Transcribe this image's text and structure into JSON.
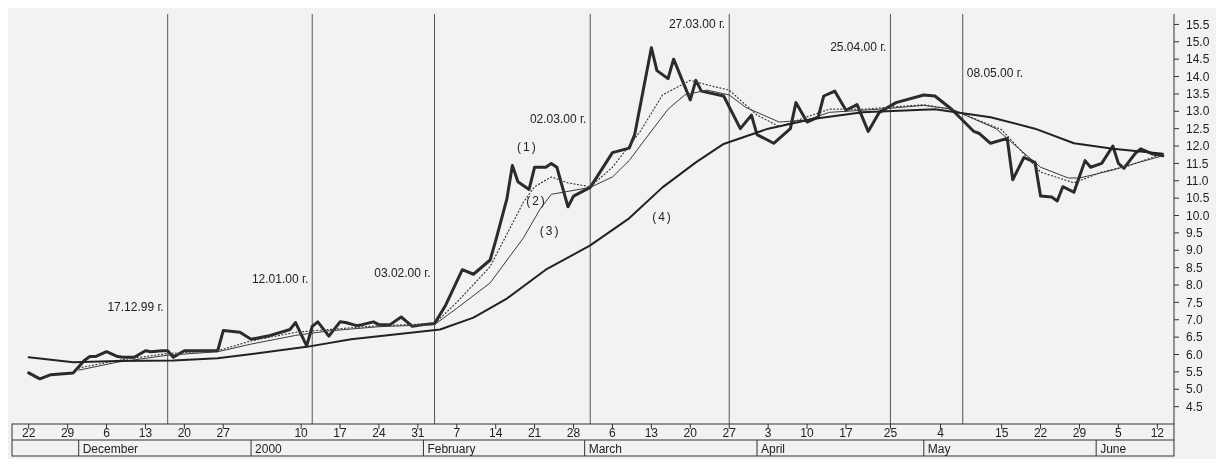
{
  "chart_data": {
    "type": "line",
    "xlim": [
      "1999-11-19",
      "2000-06-15"
    ],
    "xticks": [
      {
        "value": "1999-11-22",
        "label": "22"
      },
      {
        "value": "1999-11-29",
        "label": "29"
      },
      {
        "value": "1999-12-06",
        "label": "6"
      },
      {
        "value": "1999-12-13",
        "label": "13"
      },
      {
        "value": "1999-12-20",
        "label": "20"
      },
      {
        "value": "1999-12-27",
        "label": "27"
      },
      {
        "value": "2000-01-10",
        "label": "10"
      },
      {
        "value": "2000-01-17",
        "label": "17"
      },
      {
        "value": "2000-01-24",
        "label": "24"
      },
      {
        "value": "2000-01-31",
        "label": "31"
      },
      {
        "value": "2000-02-07",
        "label": "7"
      },
      {
        "value": "2000-02-14",
        "label": "14"
      },
      {
        "value": "2000-02-21",
        "label": "21"
      },
      {
        "value": "2000-02-28",
        "label": "28"
      },
      {
        "value": "2000-03-06",
        "label": "6"
      },
      {
        "value": "2000-03-13",
        "label": "13"
      },
      {
        "value": "2000-03-20",
        "label": "20"
      },
      {
        "value": "2000-03-27",
        "label": "27"
      },
      {
        "value": "2000-04-03",
        "label": "3"
      },
      {
        "value": "2000-04-10",
        "label": "10"
      },
      {
        "value": "2000-04-17",
        "label": "17"
      },
      {
        "value": "2000-04-25",
        "label": "25"
      },
      {
        "value": "2000-05-04",
        "label": "4"
      },
      {
        "value": "2000-05-15",
        "label": "15"
      },
      {
        "value": "2000-05-22",
        "label": "22"
      },
      {
        "value": "2000-05-29",
        "label": "29"
      },
      {
        "value": "2000-06-05",
        "label": "5"
      },
      {
        "value": "2000-06-12",
        "label": "12"
      }
    ],
    "ylim": [
      4.0,
      15.8
    ],
    "yticks": [
      4.5,
      {
        "value": 5,
        "label": "5.0"
      },
      5.5,
      {
        "value": 6,
        "label": "6.0"
      },
      6.5,
      {
        "value": 7,
        "label": "7.0"
      },
      7.5,
      {
        "value": 8,
        "label": "8.0"
      },
      8.5,
      {
        "value": 9,
        "label": "9.0"
      },
      9.5,
      {
        "value": 10,
        "label": "10.0"
      },
      10.5,
      {
        "value": 11,
        "label": "11.0"
      },
      11.5,
      {
        "value": 12,
        "label": "12.0"
      },
      12.5,
      {
        "value": 13,
        "label": "13.0"
      },
      13.5,
      {
        "value": 14,
        "label": "14.0"
      },
      14.5,
      {
        "value": 15,
        "label": "15.0"
      },
      15.5
    ],
    "grid": false,
    "legend": false,
    "series": [
      {
        "color": "#2b2b2b",
        "line_style": "solid",
        "x": [
          "1999-11-22",
          "1999-11-24",
          "1999-11-26",
          "1999-11-30",
          "1999-12-02",
          "1999-12-03",
          "1999-12-04",
          "1999-12-06",
          "1999-12-08",
          "1999-12-09",
          "1999-12-11",
          "1999-12-13",
          "1999-12-14",
          "1999-12-16",
          "1999-12-17",
          "1999-12-18",
          "1999-12-20",
          "1999-12-23",
          "1999-12-26",
          "1999-12-27",
          "1999-12-30",
          "2000-01-01",
          "2000-01-04",
          "2000-01-07",
          "2000-01-08",
          "2000-01-09",
          "2000-01-11",
          "2000-01-12",
          "2000-01-13",
          "2000-01-15",
          "2000-01-17",
          "2000-01-18",
          "2000-01-20",
          "2000-01-21",
          "2000-01-23",
          "2000-01-24",
          "2000-01-26",
          "2000-01-28",
          "2000-01-30",
          "2000-02-01",
          "2000-02-03",
          "2000-02-05",
          "2000-02-08",
          "2000-02-10",
          "2000-02-13",
          "2000-02-14",
          "2000-02-16",
          "2000-02-17",
          "2000-02-18",
          "2000-02-20",
          "2000-02-21",
          "2000-02-23",
          "2000-02-24",
          "2000-02-25",
          "2000-02-27",
          "2000-02-28",
          "2000-03-02",
          "2000-03-06",
          "2000-03-09",
          "2000-03-10",
          "2000-03-13",
          "2000-03-14",
          "2000-03-16",
          "2000-03-17",
          "2000-03-20",
          "2000-03-21",
          "2000-03-22",
          "2000-03-26",
          "2000-03-29",
          "2000-03-31",
          "2000-04-01",
          "2000-04-04",
          "2000-04-07",
          "2000-04-08",
          "2000-04-10",
          "2000-04-12",
          "2000-04-13",
          "2000-04-15",
          "2000-04-17",
          "2000-04-19",
          "2000-04-21",
          "2000-04-23",
          "2000-04-26",
          "2000-05-01",
          "2000-05-03",
          "2000-05-06",
          "2000-05-10",
          "2000-05-11",
          "2000-05-13",
          "2000-05-16",
          "2000-05-17",
          "2000-05-19",
          "2000-05-21",
          "2000-05-22",
          "2000-05-24",
          "2000-05-25",
          "2000-05-26",
          "2000-05-28",
          "2000-05-30",
          "2000-05-31",
          "2000-06-02",
          "2000-06-04",
          "2000-06-05",
          "2000-06-06",
          "2000-06-08",
          "2000-06-09",
          "2000-06-11",
          "2000-06-13"
        ],
        "name": "(1)",
        "values": [
          5.47,
          5.3,
          5.42,
          5.47,
          5.83,
          5.94,
          5.94,
          6.08,
          5.94,
          5.92,
          5.92,
          6.11,
          6.08,
          6.11,
          6.11,
          5.92,
          6.11,
          6.11,
          6.11,
          6.69,
          6.64,
          6.44,
          6.53,
          6.67,
          6.72,
          6.92,
          6.25,
          6.81,
          6.94,
          6.53,
          6.94,
          6.92,
          6.83,
          6.86,
          6.94,
          6.86,
          6.86,
          7.08,
          6.81,
          6.86,
          6.89,
          7.42,
          8.44,
          8.31,
          8.72,
          9.28,
          10.47,
          11.44,
          10.97,
          10.75,
          11.39,
          11.39,
          11.5,
          11.39,
          10.25,
          10.56,
          10.81,
          11.81,
          11.94,
          12.33,
          14.83,
          14.17,
          13.94,
          14.5,
          13.33,
          13.89,
          13.58,
          13.44,
          12.5,
          12.89,
          12.33,
          12.08,
          12.5,
          13.25,
          12.69,
          12.83,
          13.44,
          13.58,
          13.03,
          13.19,
          12.42,
          12.97,
          13.25,
          13.47,
          13.44,
          13.06,
          12.42,
          12.36,
          12.08,
          12.22,
          11.03,
          11.67,
          11.53,
          10.56,
          10.53,
          10.42,
          10.83,
          10.67,
          11.58,
          11.39,
          11.5,
          12.0,
          11.5,
          11.36,
          11.78,
          11.92,
          11.78,
          11.72
        ]
      },
      {
        "color": "#3a3a3a",
        "line_style": "dotted",
        "x": [
          "1999-12-01",
          "1999-12-08",
          "1999-12-17",
          "1999-12-26",
          "2000-01-01",
          "2000-01-09",
          "2000-01-15",
          "2000-01-24",
          "2000-02-03",
          "2000-02-07",
          "2000-02-13",
          "2000-02-19",
          "2000-02-21",
          "2000-02-24",
          "2000-02-27",
          "2000-03-02",
          "2000-03-06",
          "2000-03-11",
          "2000-03-15",
          "2000-03-20",
          "2000-03-24",
          "2000-03-27",
          "2000-04-01",
          "2000-04-05",
          "2000-04-14",
          "2000-04-20",
          "2000-05-01",
          "2000-05-06",
          "2000-05-15",
          "2000-05-22",
          "2000-05-28",
          "2000-06-02",
          "2000-06-07",
          "2000-06-13"
        ],
        "name": "(2)",
        "values": [
          5.61,
          5.83,
          6.03,
          6.11,
          6.39,
          6.64,
          6.72,
          6.83,
          6.89,
          7.5,
          8.53,
          10.39,
          10.83,
          11.11,
          10.94,
          10.83,
          11.39,
          12.42,
          13.47,
          13.89,
          13.72,
          13.61,
          12.89,
          12.56,
          13.06,
          13.06,
          13.19,
          13.06,
          12.47,
          11.25,
          10.94,
          11.25,
          11.44,
          11.78
        ]
      },
      {
        "color": "#3a3a3a",
        "line_style": "solid",
        "x": [
          "1999-12-01",
          "1999-12-08",
          "1999-12-17",
          "1999-12-26",
          "2000-01-01",
          "2000-01-09",
          "2000-01-15",
          "2000-01-24",
          "2000-02-03",
          "2000-02-07",
          "2000-02-13",
          "2000-02-19",
          "2000-02-22",
          "2000-02-24",
          "2000-03-02",
          "2000-03-06",
          "2000-03-09",
          "2000-03-12",
          "2000-03-16",
          "2000-03-19",
          "2000-03-23",
          "2000-03-27",
          "2000-03-30",
          "2000-04-05",
          "2000-04-10",
          "2000-04-14",
          "2000-04-20",
          "2000-04-23",
          "2000-05-01",
          "2000-05-06",
          "2000-05-14",
          "2000-05-18",
          "2000-05-22",
          "2000-05-27",
          "2000-05-29",
          "2000-06-04",
          "2000-06-08",
          "2000-06-13"
        ],
        "name": "(3)",
        "values": [
          5.55,
          5.78,
          5.98,
          6.08,
          6.3,
          6.55,
          6.68,
          6.8,
          6.86,
          7.33,
          8.06,
          9.36,
          10.19,
          10.61,
          10.81,
          11.11,
          11.58,
          12.22,
          13.06,
          13.47,
          13.61,
          13.47,
          13.11,
          12.69,
          12.75,
          12.97,
          13.03,
          13.06,
          13.17,
          13.06,
          12.5,
          11.94,
          11.39,
          11.08,
          11.08,
          11.31,
          11.5,
          11.72
        ]
      },
      {
        "color": "#222222",
        "line_style": "solid",
        "x": [
          "1999-11-22",
          "1999-11-30",
          "1999-12-08",
          "1999-12-18",
          "1999-12-26",
          "2000-01-11",
          "2000-01-19",
          "2000-02-04",
          "2000-02-10",
          "2000-02-16",
          "2000-02-23",
          "2000-03-02",
          "2000-03-09",
          "2000-03-15",
          "2000-03-21",
          "2000-03-26",
          "2000-04-03",
          "2000-04-11",
          "2000-04-20",
          "2000-05-03",
          "2000-05-13",
          "2000-05-21",
          "2000-05-28",
          "2000-06-04",
          "2000-06-13"
        ],
        "name": "(4)",
        "values": [
          5.92,
          5.78,
          5.81,
          5.83,
          5.89,
          6.22,
          6.44,
          6.72,
          7.06,
          7.61,
          8.44,
          9.14,
          9.92,
          10.81,
          11.53,
          12.06,
          12.5,
          12.78,
          12.97,
          13.06,
          12.83,
          12.5,
          12.08,
          11.92,
          11.78
        ]
      }
    ],
    "ref_lines": [
      {
        "axis": "x",
        "value": "1999-12-17",
        "label": "17.12.99 г."
      },
      {
        "axis": "x",
        "value": "2000-01-12",
        "label": "12.01.00 г."
      },
      {
        "axis": "x",
        "value": "2000-02-03",
        "label": "03.02.00 г."
      },
      {
        "axis": "x",
        "value": "2000-03-02",
        "label": "02.03.00 г."
      },
      {
        "axis": "x",
        "value": "2000-03-27",
        "label": "27.03.00 г."
      },
      {
        "axis": "x",
        "value": "2000-04-25",
        "label": "25.04.00 г."
      },
      {
        "axis": "x",
        "value": "2000-05-08",
        "label": "08.05.00 г."
      }
    ],
    "annotations": [
      "December",
      "2000",
      "February",
      "March",
      "April",
      "May",
      "June"
    ]
  }
}
